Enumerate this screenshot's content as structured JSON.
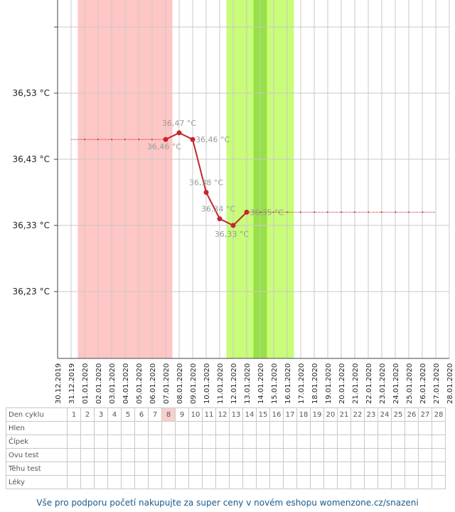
{
  "chart_data": {
    "type": "line",
    "dates": [
      "30.12.2019",
      "31.12.2019",
      "01.01.2020",
      "02.01.2020",
      "03.01.2020",
      "04.01.2020",
      "05.01.2020",
      "06.01.2020",
      "07.01.2020",
      "08.01.2020",
      "09.01.2020",
      "10.01.2020",
      "11.01.2020",
      "12.01.2020",
      "13.01.2020",
      "14.01.2020",
      "15.01.2020",
      "16.01.2020",
      "17.01.2020",
      "18.01.2020",
      "19.01.2020",
      "20.01.2020",
      "21.01.2020",
      "22.01.2020",
      "23.01.2020",
      "24.01.2020",
      "25.01.2020",
      "26.01.2020",
      "27.01.2020",
      "28.01.2020"
    ],
    "y_ticks": [
      "36,23 °C",
      "36,33 °C",
      "36,43 °C",
      "36,53 °C"
    ],
    "y_tick_values": [
      36.23,
      36.33,
      36.43,
      36.53
    ],
    "ylim": [
      36.13,
      36.63
    ],
    "series": [
      {
        "points": [
          {
            "x": "07.01.2020",
            "y": 36.46,
            "label": "36,46 °C"
          },
          {
            "x": "08.01.2020",
            "y": 36.47,
            "label": "36,47 °C"
          },
          {
            "x": "09.01.2020",
            "y": 36.46,
            "label": "36,46 °C"
          },
          {
            "x": "10.01.2020",
            "y": 36.38,
            "label": "36,38 °C"
          },
          {
            "x": "11.01.2020",
            "y": 36.34,
            "label": "36,34 °C"
          },
          {
            "x": "12.01.2020",
            "y": 36.33,
            "label": "36,33 °C"
          },
          {
            "x": "13.01.2020",
            "y": 36.35,
            "label": "36,35 °C"
          }
        ],
        "color": "#c0282d"
      }
    ],
    "reference_lines": [
      {
        "y": 36.46,
        "from": "31.12.2019",
        "to": "07.01.2020",
        "color": "#c0282d"
      },
      {
        "y": 36.35,
        "from": "13.01.2020",
        "to": "27.01.2020",
        "color": "#c0282d"
      }
    ],
    "bands": [
      {
        "kind": "period",
        "from": "31.12.2019",
        "to": "07.01.2020",
        "color": "#ffc6c6"
      },
      {
        "kind": "fertile",
        "from": "11.01.2020",
        "to": "16.01.2020",
        "color": "#c8fc79"
      },
      {
        "kind": "ovulation",
        "from": "13.01.2020",
        "to": "14.01.2020",
        "color": "#97e045"
      }
    ],
    "grid": true
  },
  "table": {
    "rows": [
      "Den cyklu",
      "Hlen",
      "Čípek",
      "Ovu test",
      "Těhu test",
      "Léky"
    ],
    "days": [
      "1",
      "2",
      "3",
      "4",
      "5",
      "6",
      "7",
      "8",
      "9",
      "10",
      "11",
      "12",
      "13",
      "14",
      "15",
      "16",
      "17",
      "18",
      "19",
      "20",
      "21",
      "22",
      "23",
      "24",
      "25",
      "26",
      "27",
      "28"
    ],
    "highlight_day": "8"
  },
  "footer": {
    "text": "Vše pro podporu početí nakupujte za super ceny v novém eshopu womenzone.cz/snazeni"
  }
}
